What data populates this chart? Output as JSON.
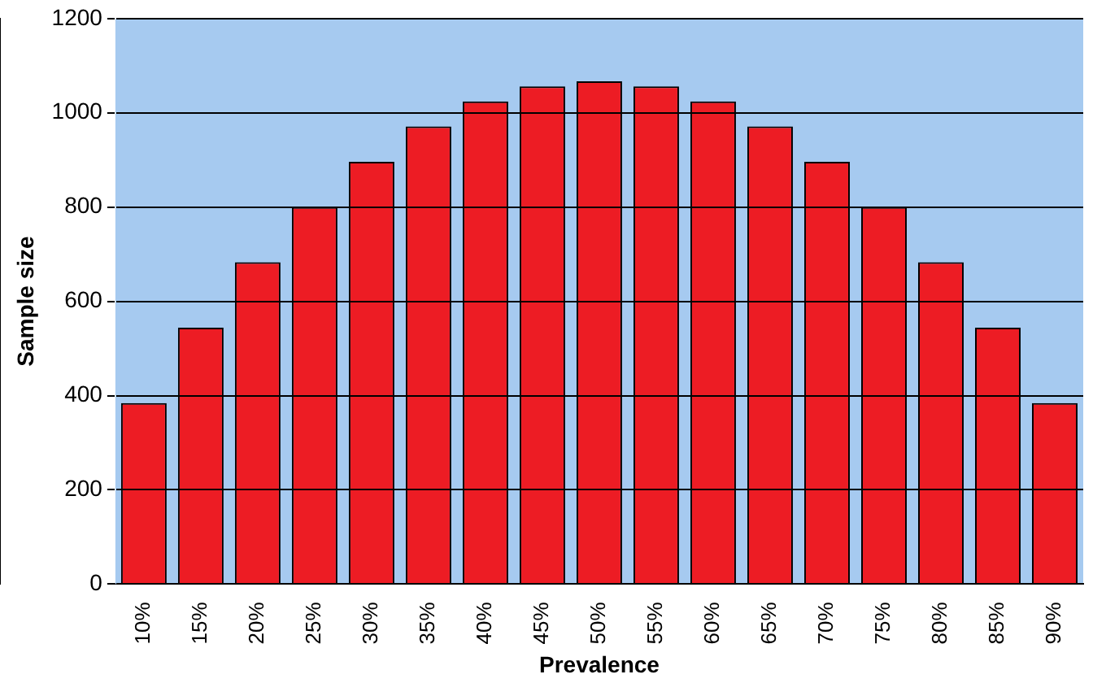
{
  "chart_data": {
    "type": "bar",
    "xlabel": "Prevalence",
    "ylabel": "Sample size",
    "categories": [
      "10%",
      "15%",
      "20%",
      "25%",
      "30%",
      "35%",
      "40%",
      "45%",
      "50%",
      "55%",
      "60%",
      "65%",
      "70%",
      "75%",
      "80%",
      "85%",
      "90%"
    ],
    "values": [
      384,
      544,
      683,
      800,
      896,
      971,
      1024,
      1056,
      1067,
      1056,
      1024,
      971,
      896,
      800,
      683,
      544,
      384
    ],
    "color": "#ed1c24",
    "ylim": [
      0,
      1200
    ],
    "yticks": [
      0,
      200,
      400,
      600,
      800,
      1000,
      1200
    ],
    "grid": "y",
    "legend": false,
    "bands": [
      {
        "axis": "y",
        "from": 0,
        "to": 1200,
        "color": "#a6caf0"
      }
    ]
  }
}
